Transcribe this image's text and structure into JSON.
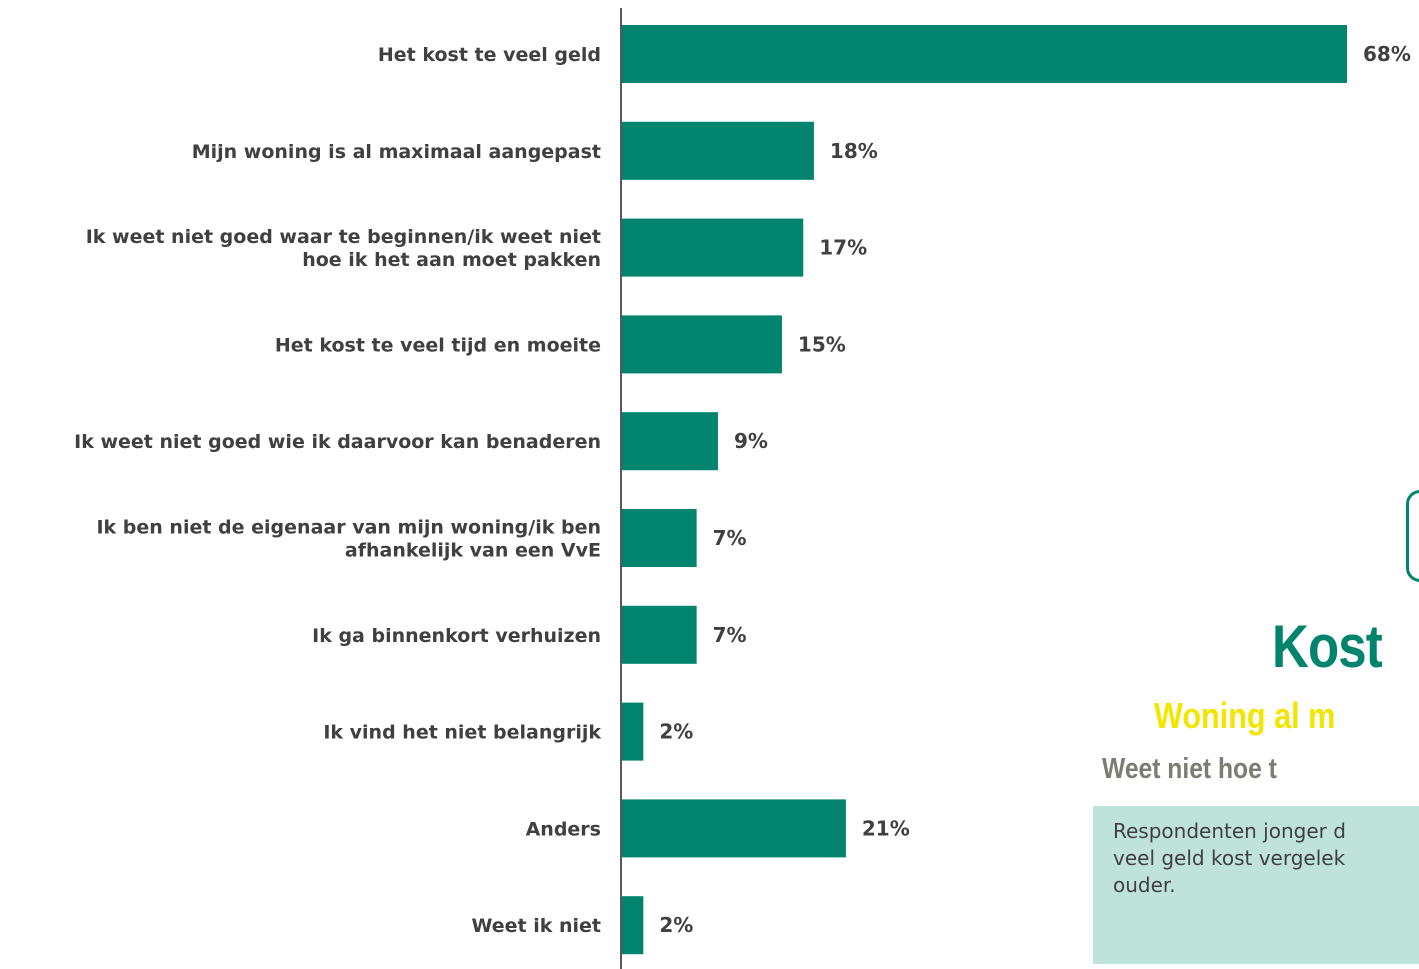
{
  "chart_data": {
    "type": "bar",
    "orientation": "horizontal",
    "categories": [
      [
        "Het kost te veel geld"
      ],
      [
        "Mijn woning is al maximaal aangepast"
      ],
      [
        "Ik weet niet goed waar te beginnen/ik weet niet",
        "hoe ik het aan moet pakken"
      ],
      [
        "Het kost te veel tijd en moeite"
      ],
      [
        "Ik weet niet goed wie ik daarvoor kan benaderen"
      ],
      [
        "Ik ben niet de eigenaar van mijn woning/ik ben",
        "afhankelijk van een VvE"
      ],
      [
        "Ik ga binnenkort verhuizen"
      ],
      [
        "Ik vind het niet belangrijk"
      ],
      [
        "Anders"
      ],
      [
        "Weet ik niet"
      ]
    ],
    "values": [
      68,
      18,
      17,
      15,
      9,
      7,
      7,
      2,
      21,
      2
    ],
    "value_labels": [
      "68%",
      "18%",
      "17%",
      "15%",
      "9%",
      "7%",
      "7%",
      "2%",
      "21%",
      "2%"
    ],
    "xlim": [
      0,
      100
    ],
    "grid": false,
    "legend": "none",
    "bar_color": "#00846d"
  },
  "callout": {
    "words": [
      "Kost",
      "Woning al m",
      "Weet niet hoe t"
    ],
    "colors": [
      "#00846d",
      "#f2e500",
      "#7c7c73"
    ],
    "note_text": "Respondenten jonger d\nveel geld kost vergelek\nouder.",
    "note_bg": "#bfe3da"
  }
}
